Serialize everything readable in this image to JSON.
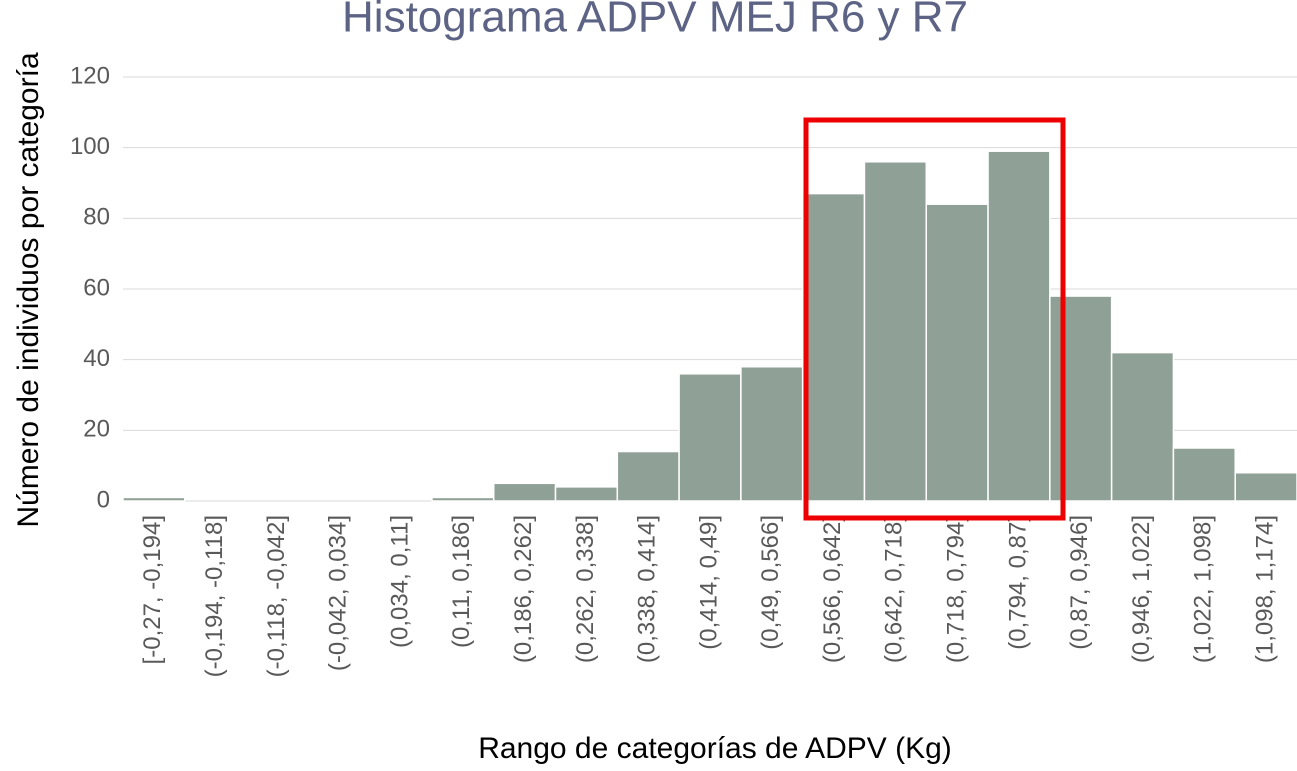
{
  "chart_data": {
    "type": "bar",
    "title": "Histograma ADPV MEJ R6 y R7",
    "y_label": "Número de individuos por categoría",
    "x_label": "Rango de categorías de ADPV (Kg)",
    "categories": [
      "[-0,27, -0,194]",
      "(-0,194, -0,118]",
      "(-0,118, -0,042]",
      "(-0,042, 0,034]",
      "(0,034, 0,11]",
      "(0,11, 0,186]",
      "(0,186, 0,262]",
      "(0,262, 0,338]",
      "(0,338, 0,414]",
      "(0,414, 0,49]",
      "(0,49, 0,566]",
      "(0,566, 0,642]",
      "(0,642, 0,718]",
      "(0,718, 0,794]",
      "(0,794, 0,87]",
      "(0,87, 0,946]",
      "(0,946, 1,022]",
      "(1,022, 1,098]",
      "(1,098, 1,174]"
    ],
    "values": [
      1,
      0,
      0,
      0,
      0,
      1,
      5,
      4,
      14,
      36,
      38,
      87,
      96,
      84,
      99,
      58,
      42,
      15,
      8
    ],
    "color": "#8fa096",
    "ylim": [
      0,
      120
    ],
    "yticks": [
      0,
      20,
      40,
      60,
      80,
      100,
      120
    ],
    "grid": true
  }
}
